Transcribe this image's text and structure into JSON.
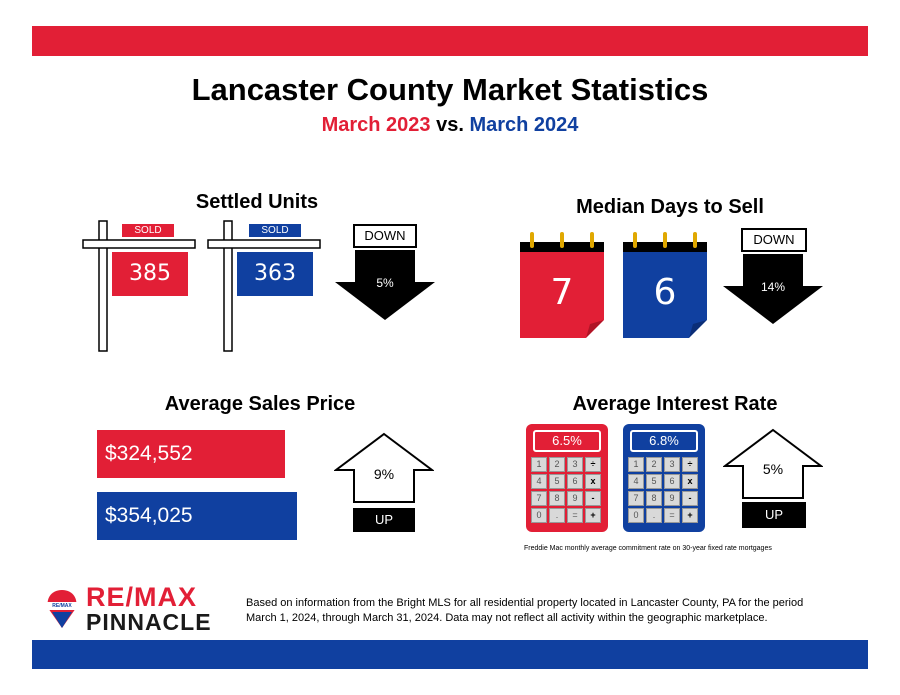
{
  "header": {
    "title": "Lancaster County Market Statistics",
    "subtitle_part1": "March 2023",
    "subtitle_vs": " vs. ",
    "subtitle_part2": "March 2024"
  },
  "settled_units": {
    "title": "Settled Units",
    "sign_label": "SOLD",
    "value_2023": "385",
    "value_2024": "363",
    "direction": "DOWN",
    "change": "5%"
  },
  "median_days": {
    "title": "Median Days to Sell",
    "value_2023": "7",
    "value_2024": "6",
    "direction": "DOWN",
    "change": "14%"
  },
  "avg_price": {
    "title": "Average Sales Price",
    "value_2023": "$324,552",
    "value_2024": "$354,025",
    "direction": "UP",
    "change": "9%"
  },
  "interest_rate": {
    "title": "Average Interest Rate",
    "value_2023": "6.5%",
    "value_2024": "6.8%",
    "direction": "UP",
    "change": "5%",
    "note": "Freddie Mac monthly average commitment rate on 30-year fixed rate mortgages",
    "keys": [
      "1",
      "2",
      "3",
      "÷",
      "4",
      "5",
      "6",
      "x",
      "7",
      "8",
      "9",
      "-",
      "0",
      ".",
      "=",
      "+"
    ]
  },
  "footer": {
    "brand_line1": "RE/MAX",
    "brand_line2": "PINNACLE",
    "balloon_text": "RE/MAX",
    "disclaimer": "Based on information from the Bright MLS for all residential property located in Lancaster County, PA for the period March 1, 2024, through March 31, 2024.  Data may not reflect all activity within the geographic marketplace."
  },
  "colors": {
    "red": "#e21f36",
    "blue": "#1040a0"
  }
}
